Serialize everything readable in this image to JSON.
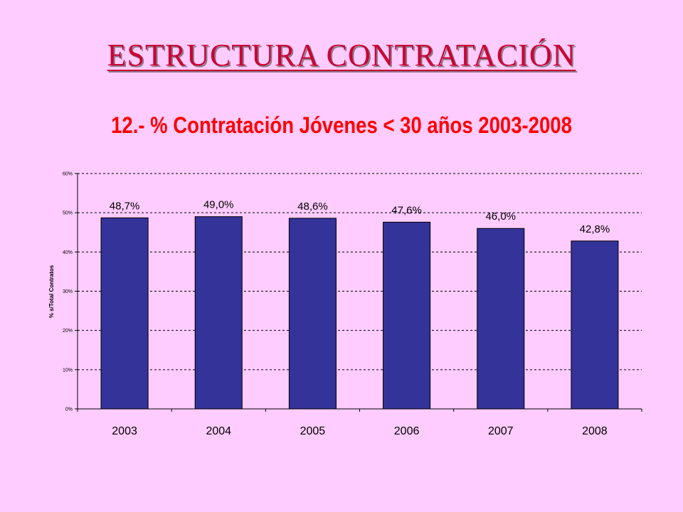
{
  "slide": {
    "title": "ESTRUCTURA CONTRATACIÓN"
  },
  "colors": {
    "background": "#FFCCFF",
    "bar": "#333399",
    "title": "#CC0033",
    "chart_title": "#FF0000"
  },
  "chart_data": {
    "type": "bar",
    "title": "12.- % Contratación Jóvenes < 30 años 2003-2008",
    "xlabel": "",
    "ylabel": "% s/Total Contratos",
    "categories": [
      "2003",
      "2004",
      "2005",
      "2006",
      "2007",
      "2008"
    ],
    "values": [
      48.7,
      49.0,
      48.6,
      47.6,
      46.0,
      42.8
    ],
    "data_labels": [
      "48,7%",
      "49,0%",
      "48,6%",
      "47,6%",
      "46,0%",
      "42,8%"
    ],
    "ylim": [
      0,
      60
    ],
    "yticks": [
      0,
      10,
      20,
      30,
      40,
      50,
      60
    ],
    "ytick_labels": [
      "0%",
      "10%",
      "20%",
      "30%",
      "40%",
      "50%",
      "60%"
    ],
    "grid": true,
    "legend": "none"
  }
}
